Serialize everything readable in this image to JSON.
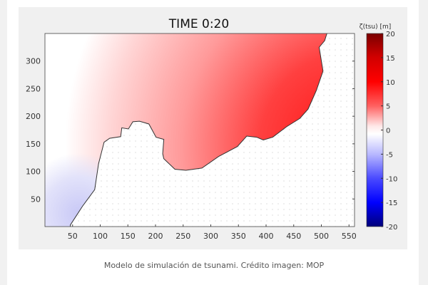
{
  "caption": "Modelo de simulación de tsunami. Crédito imagen: MOP",
  "chart_data": {
    "type": "heatmap",
    "title": "TIME 0:20",
    "xlim": [
      0,
      560
    ],
    "ylim": [
      0,
      350
    ],
    "xticks": [
      50,
      100,
      150,
      200,
      250,
      300,
      350,
      400,
      450,
      500,
      550
    ],
    "yticks": [
      50,
      100,
      150,
      200,
      250,
      300
    ],
    "colorbar": {
      "label": "ζ(tsu) [m]",
      "range": [
        -20,
        20
      ],
      "ticks": [
        20,
        15,
        10,
        5,
        0,
        -5,
        -10,
        -15,
        -20
      ],
      "colors": {
        "-20": "#00007a",
        "-15": "#0000ff",
        "-10": "#4a4aff",
        "-5": "#b8b8ff",
        "0": "#ffffff",
        "5": "#ffb0b0",
        "10": "#ff6060",
        "15": "#ff0000",
        "20": "#7a0000"
      }
    },
    "coastline": [
      [
        46,
        0
      ],
      [
        46,
        3
      ],
      [
        68,
        37
      ],
      [
        90,
        67
      ],
      [
        97,
        114
      ],
      [
        107,
        153
      ],
      [
        117,
        160
      ],
      [
        137,
        163
      ],
      [
        139,
        179
      ],
      [
        151,
        177
      ],
      [
        159,
        190
      ],
      [
        171,
        191
      ],
      [
        188,
        186
      ],
      [
        201,
        162
      ],
      [
        215,
        158
      ],
      [
        213,
        132
      ],
      [
        215,
        123
      ],
      [
        235,
        104
      ],
      [
        255,
        102
      ],
      [
        284,
        106
      ],
      [
        314,
        127
      ],
      [
        348,
        145
      ],
      [
        365,
        164
      ],
      [
        383,
        162
      ],
      [
        395,
        157
      ],
      [
        412,
        162
      ],
      [
        437,
        181
      ],
      [
        461,
        196
      ],
      [
        476,
        213
      ],
      [
        491,
        247
      ],
      [
        503,
        282
      ],
      [
        496,
        325
      ],
      [
        506,
        337
      ],
      [
        510,
        350
      ]
    ]
  }
}
